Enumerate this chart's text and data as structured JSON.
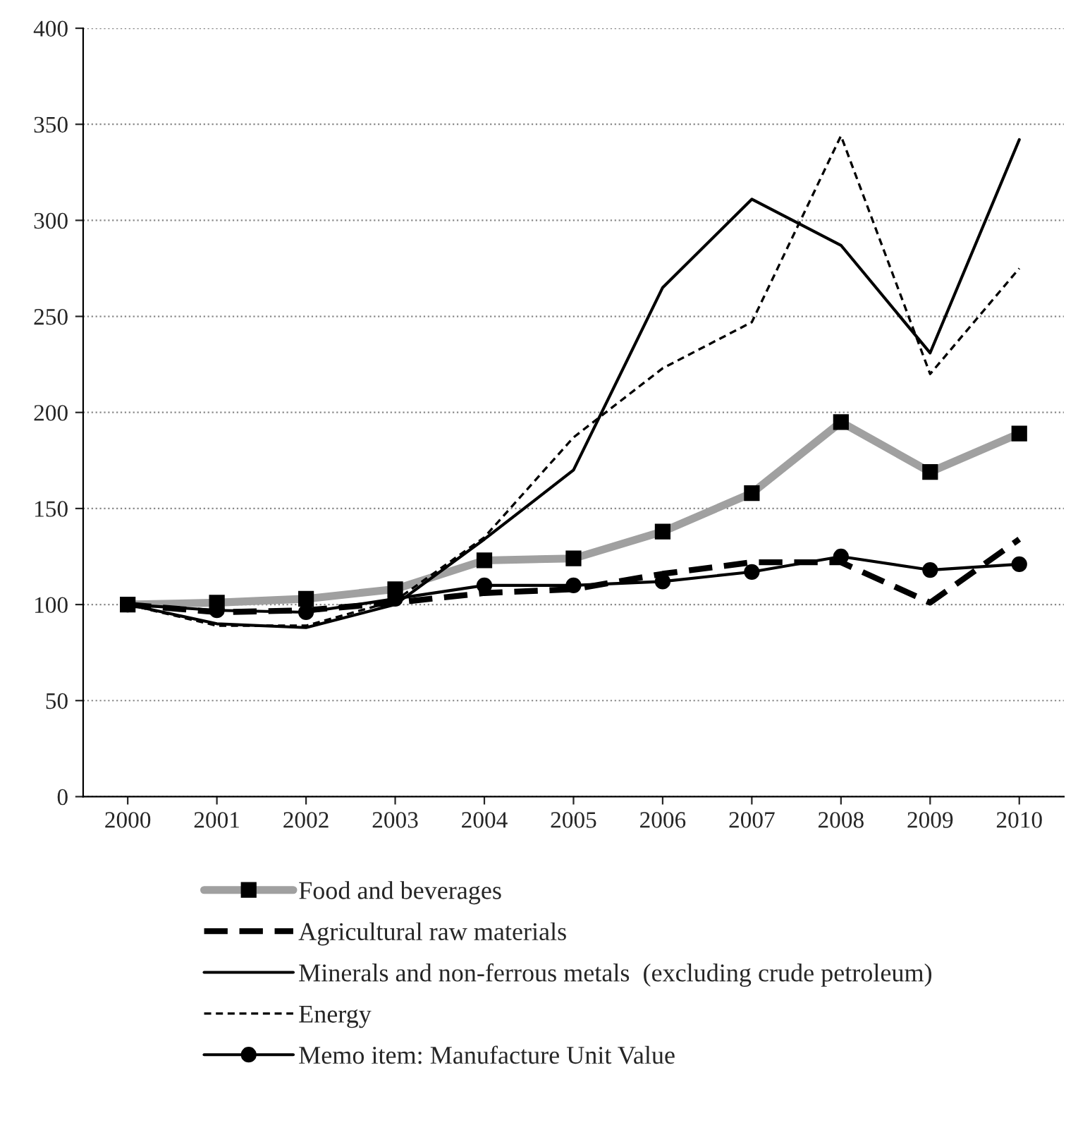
{
  "chart_data": {
    "type": "line",
    "categories": [
      "2000",
      "2001",
      "2002",
      "2003",
      "2004",
      "2005",
      "2006",
      "2007",
      "2008",
      "2009",
      "2010"
    ],
    "ylim": [
      0,
      400
    ],
    "yticks": [
      0,
      50,
      100,
      150,
      200,
      250,
      300,
      350,
      400
    ],
    "grid": "y",
    "legend": "bottom",
    "series": [
      {
        "name": "Food and beverages",
        "color": "#a0a0a0",
        "marker": "square",
        "line_style": "solid",
        "values": [
          100,
          101,
          103,
          108,
          123,
          124,
          138,
          158,
          195,
          169,
          189
        ]
      },
      {
        "name": "Agricultural raw materials",
        "color": "#000000",
        "marker": "none",
        "line_style": "dashed",
        "values": [
          100,
          96,
          97,
          101,
          106,
          108,
          116,
          122,
          122,
          101,
          134
        ]
      },
      {
        "name": "Minerals and non-ferrous metals  (excluding crude petroleum)",
        "color": "#000000",
        "marker": "none",
        "line_style": "solid",
        "values": [
          100,
          90,
          88,
          100,
          134,
          170,
          265,
          311,
          287,
          231,
          342
        ]
      },
      {
        "name": "Energy",
        "color": "#000000",
        "marker": "none",
        "line_style": "dotted",
        "values": [
          100,
          89,
          89,
          102,
          135,
          187,
          223,
          247,
          344,
          220,
          275
        ]
      },
      {
        "name": "Memo item: Manufacture Unit Value",
        "color": "#000000",
        "marker": "circle",
        "line_style": "solid",
        "values": [
          100,
          97,
          96,
          103,
          110,
          110,
          112,
          117,
          125,
          118,
          121
        ]
      }
    ]
  }
}
